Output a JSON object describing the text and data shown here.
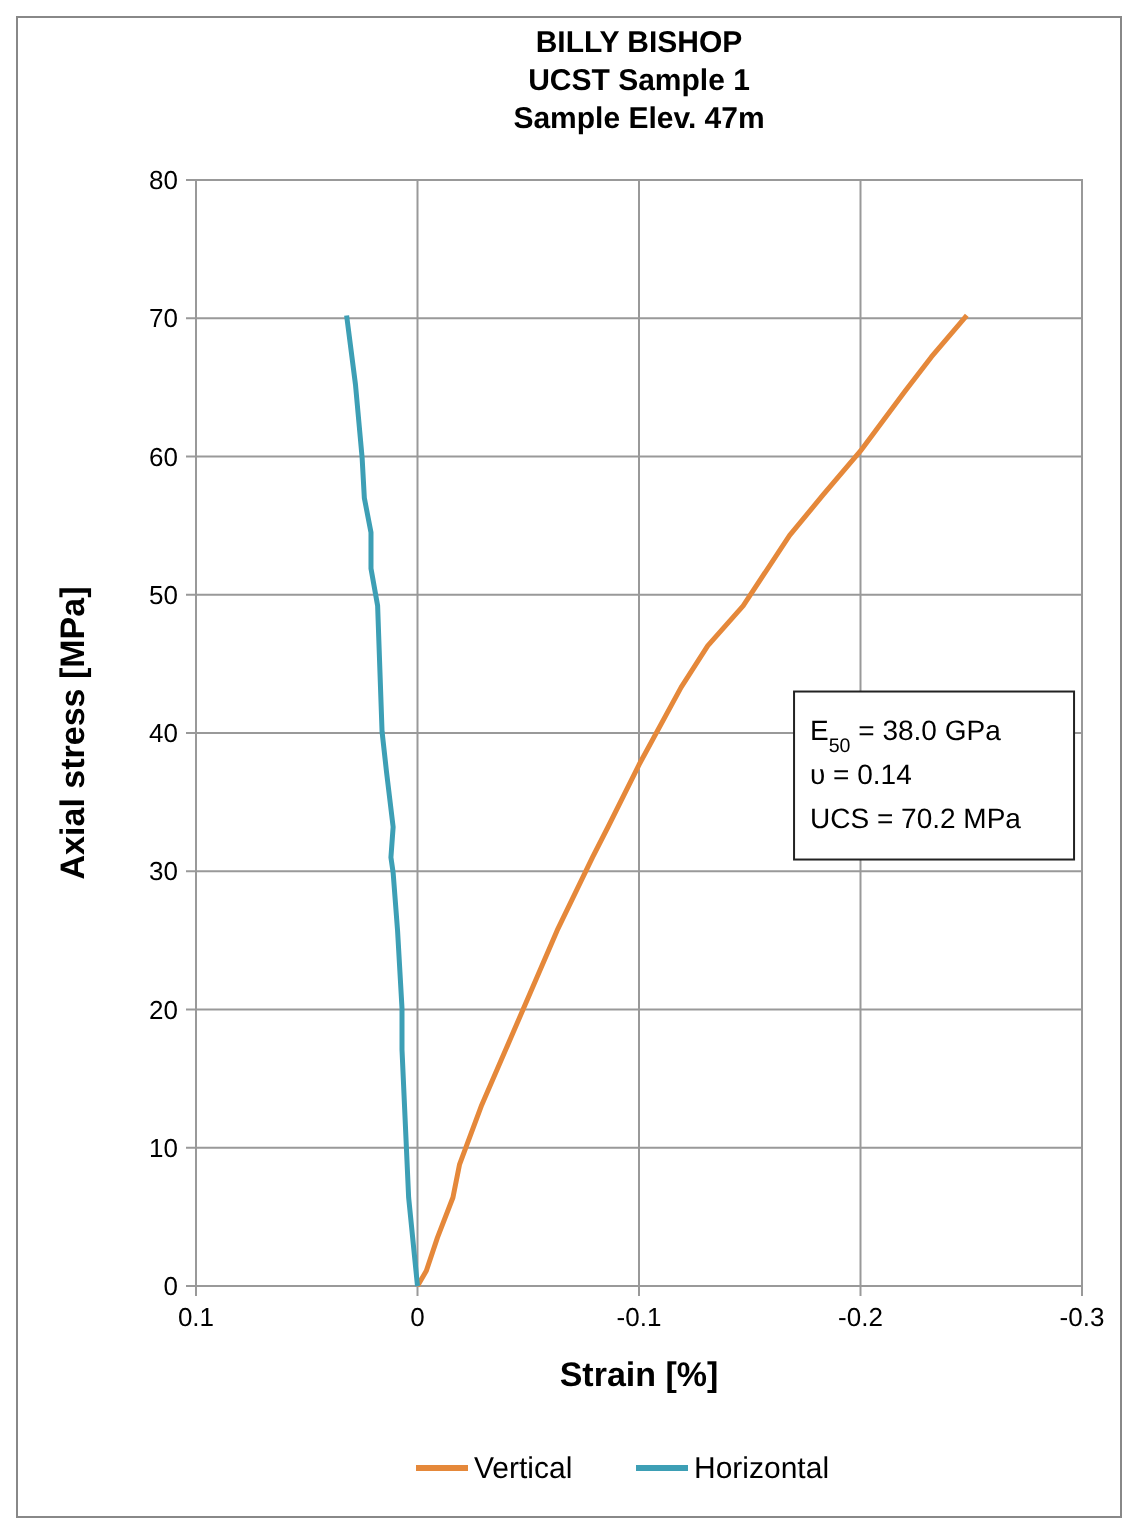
{
  "chart_data": {
    "type": "line",
    "title": "BILLY BISHOP\nUCST Sample 1\nSample Elev. 47m",
    "xlabel": "Strain [%]",
    "ylabel": "Axial stress [MPa]",
    "xlim": [
      0.1,
      -0.3
    ],
    "xticks": [
      0.1,
      0,
      -0.1,
      -0.2,
      -0.3
    ],
    "ylim": [
      0,
      80
    ],
    "yticks": [
      0,
      10,
      20,
      30,
      40,
      50,
      60,
      70,
      80
    ],
    "grid": true,
    "legend": "bottom",
    "marker": "none",
    "line_style": "solid",
    "annotations": [
      "E$_{50}$ = 38.0 GPa",
      "υ = 0.14",
      "UCS = 70.2 MPa"
    ],
    "series": [
      {
        "name": "Vertical",
        "color": "#e5883a",
        "x": [
          0,
          -0.004,
          -0.009,
          -0.016,
          -0.019,
          -0.029,
          -0.042,
          -0.063,
          -0.079,
          -0.086,
          -0.1,
          -0.119,
          -0.131,
          -0.147,
          -0.168,
          -0.183,
          -0.2,
          -0.22,
          -0.232,
          -0.248
        ],
        "values": [
          0,
          1.1,
          3.5,
          6.4,
          8.8,
          13.1,
          17.9,
          25.7,
          31.0,
          33.2,
          37.7,
          43.3,
          46.3,
          49.2,
          54.3,
          57.2,
          60.4,
          64.7,
          67.2,
          70.2
        ]
      },
      {
        "name": "Horizontal",
        "color": "#3d9fb5",
        "x": [
          0,
          0.004,
          0.007,
          0.007,
          0.009,
          0.011,
          0.012,
          0.011,
          0.014,
          0.016,
          0.018,
          0.021,
          0.021,
          0.024,
          0.025,
          0.028,
          0.032
        ],
        "values": [
          0,
          6.4,
          17.1,
          20.1,
          25.7,
          29.9,
          31.0,
          33.2,
          37.2,
          40.1,
          49.2,
          51.9,
          54.5,
          57.0,
          59.9,
          65.2,
          70.2
        ]
      }
    ]
  }
}
